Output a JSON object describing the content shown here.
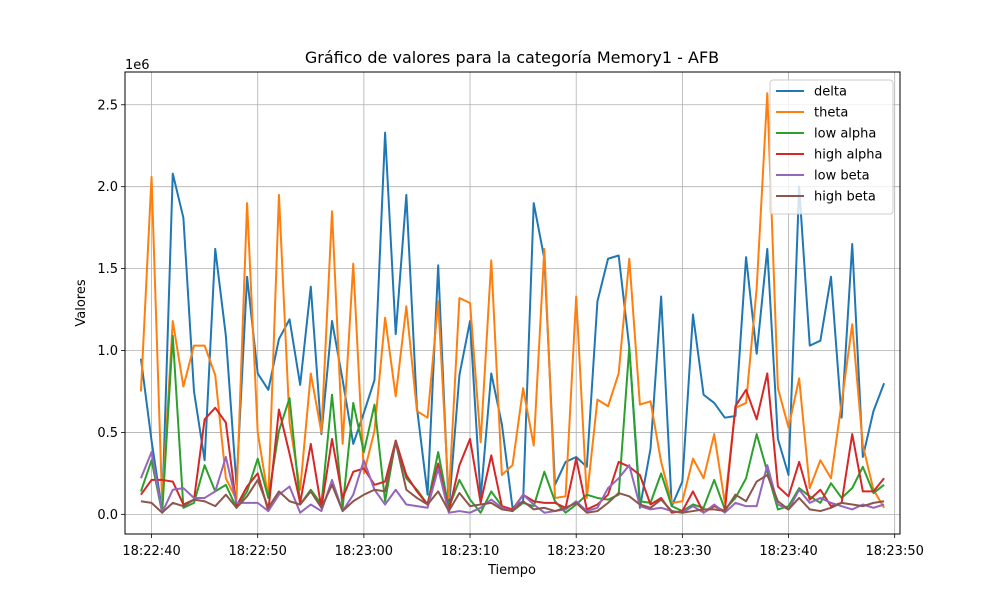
{
  "chart_data": {
    "type": "line",
    "title": "Gráfico de valores para la categoría Memory1 - AFB",
    "xlabel": "Tiempo",
    "ylabel": "Valores",
    "y_scale_label": "1e6",
    "grid": true,
    "legend_position": "top-right",
    "x_start_time": "18:22:39",
    "x_unit": "seconds",
    "xlim": [
      "18:22:37.5",
      "18:23:50.5"
    ],
    "ylim": [
      -0.12,
      2.7
    ],
    "x_ticks": [
      {
        "label": "18:22:40",
        "value": 1
      },
      {
        "label": "18:22:50",
        "value": 11
      },
      {
        "label": "18:23:00",
        "value": 21
      },
      {
        "label": "18:23:10",
        "value": 31
      },
      {
        "label": "18:23:20",
        "value": 41
      },
      {
        "label": "18:23:30",
        "value": 51
      },
      {
        "label": "18:23:40",
        "value": 61
      },
      {
        "label": "18:23:50",
        "value": 71
      }
    ],
    "y_ticks": [
      {
        "label": "0.0",
        "value": 0
      },
      {
        "label": "0.5",
        "value": 0.5
      },
      {
        "label": "1.0",
        "value": 1.0
      },
      {
        "label": "1.5",
        "value": 1.5
      },
      {
        "label": "2.0",
        "value": 2.0
      },
      {
        "label": "2.5",
        "value": 2.5
      }
    ],
    "series": [
      {
        "name": "delta",
        "color": "#1f77b4",
        "values": [
          0.95,
          0.45,
          0.02,
          2.08,
          1.81,
          0.75,
          0.33,
          1.62,
          1.09,
          0.18,
          1.45,
          0.86,
          0.76,
          1.07,
          1.19,
          0.79,
          1.39,
          0.49,
          1.18,
          0.82,
          0.43,
          0.62,
          0.82,
          2.33,
          1.1,
          1.95,
          0.65,
          0.12,
          1.52,
          0.03,
          0.85,
          1.18,
          0.1,
          0.86,
          0.55,
          0.04,
          0.08,
          1.9,
          1.56,
          0.18,
          0.32,
          0.35,
          0.29,
          1.3,
          1.56,
          1.58,
          1.02,
          0.04,
          0.4,
          1.33,
          0.05,
          0.2,
          1.22,
          0.73,
          0.68,
          0.59,
          0.6,
          1.57,
          0.98,
          1.62,
          0.46,
          0.24,
          2.0,
          1.03,
          1.06,
          1.45,
          0.59,
          1.65,
          0.35,
          0.63,
          0.8
        ]
      },
      {
        "name": "theta",
        "color": "#ff7f0e",
        "values": [
          0.75,
          2.06,
          0.07,
          1.18,
          0.78,
          1.03,
          1.03,
          0.85,
          0.22,
          0.09,
          1.9,
          0.5,
          0.1,
          1.95,
          0.56,
          0.15,
          0.86,
          0.5,
          1.85,
          0.43,
          1.53,
          0.25,
          0.51,
          1.2,
          0.72,
          1.27,
          0.63,
          0.59,
          1.3,
          0.1,
          1.32,
          1.29,
          0.44,
          1.55,
          0.24,
          0.3,
          0.77,
          0.42,
          1.62,
          0.1,
          0.11,
          1.33,
          0.1,
          0.7,
          0.66,
          0.86,
          1.56,
          0.67,
          0.69,
          0.32,
          0.07,
          0.08,
          0.34,
          0.22,
          0.49,
          0.07,
          0.65,
          0.68,
          1.38,
          2.57,
          0.77,
          0.53,
          0.83,
          0.16,
          0.33,
          0.22,
          0.68,
          1.16,
          0.42,
          0.15,
          0.04
        ]
      },
      {
        "name": "low alpha",
        "color": "#2ca02c",
        "values": [
          0.14,
          0.33,
          0.01,
          1.09,
          0.04,
          0.07,
          0.3,
          0.14,
          0.18,
          0.04,
          0.14,
          0.34,
          0.1,
          0.51,
          0.71,
          0.06,
          0.15,
          0.06,
          0.73,
          0.04,
          0.68,
          0.38,
          0.67,
          0.08,
          0.45,
          0.22,
          0.15,
          0.06,
          0.38,
          0.04,
          0.21,
          0.09,
          0.01,
          0.14,
          0.05,
          0.02,
          0.07,
          0.05,
          0.26,
          0.08,
          0.01,
          0.06,
          0.12,
          0.1,
          0.09,
          0.12,
          1.02,
          0.08,
          0.07,
          0.25,
          0.05,
          0.02,
          0.06,
          0.04,
          0.21,
          0.03,
          0.1,
          0.22,
          0.49,
          0.26,
          0.03,
          0.05,
          0.16,
          0.11,
          0.07,
          0.19,
          0.1,
          0.16,
          0.29,
          0.13,
          0.18
        ]
      },
      {
        "name": "high alpha",
        "color": "#d62728",
        "values": [
          0.12,
          0.21,
          0.21,
          0.2,
          0.06,
          0.09,
          0.58,
          0.65,
          0.56,
          0.05,
          0.17,
          0.25,
          0.02,
          0.64,
          0.37,
          0.07,
          0.43,
          0.04,
          0.46,
          0.1,
          0.26,
          0.28,
          0.18,
          0.2,
          0.45,
          0.24,
          0.14,
          0.06,
          0.31,
          0.02,
          0.3,
          0.46,
          0.07,
          0.36,
          0.05,
          0.03,
          0.12,
          0.08,
          0.07,
          0.07,
          0.04,
          0.34,
          0.03,
          0.06,
          0.12,
          0.32,
          0.29,
          0.24,
          0.06,
          0.1,
          0.01,
          0.02,
          0.14,
          0.01,
          0.05,
          0.02,
          0.66,
          0.76,
          0.58,
          0.86,
          0.17,
          0.11,
          0.32,
          0.09,
          0.15,
          0.05,
          0.07,
          0.49,
          0.14,
          0.14,
          0.22
        ]
      },
      {
        "name": "low beta",
        "color": "#9467bd",
        "values": [
          0.22,
          0.38,
          0.01,
          0.15,
          0.16,
          0.1,
          0.1,
          0.14,
          0.35,
          0.07,
          0.07,
          0.07,
          0.02,
          0.12,
          0.17,
          0.01,
          0.06,
          0.02,
          0.21,
          0.02,
          0.12,
          0.33,
          0.15,
          0.06,
          0.15,
          0.06,
          0.05,
          0.04,
          0.28,
          0.01,
          0.02,
          0.01,
          0.04,
          0.09,
          0.04,
          0.02,
          0.12,
          0.06,
          0.01,
          0.02,
          0.03,
          0.08,
          0.02,
          0.04,
          0.16,
          0.22,
          0.3,
          0.05,
          0.03,
          0.04,
          0.02,
          0.01,
          0.05,
          0.01,
          0.06,
          0.01,
          0.07,
          0.05,
          0.05,
          0.3,
          0.06,
          0.03,
          0.15,
          0.07,
          0.1,
          0.07,
          0.05,
          0.03,
          0.06,
          0.04,
          0.06
        ]
      },
      {
        "name": "high beta",
        "color": "#8c564b",
        "values": [
          0.08,
          0.07,
          0.01,
          0.07,
          0.05,
          0.09,
          0.08,
          0.05,
          0.12,
          0.04,
          0.11,
          0.21,
          0.04,
          0.14,
          0.08,
          0.06,
          0.14,
          0.04,
          0.18,
          0.02,
          0.08,
          0.12,
          0.15,
          0.14,
          0.44,
          0.15,
          0.1,
          0.06,
          0.14,
          0.02,
          0.13,
          0.05,
          0.06,
          0.07,
          0.03,
          0.02,
          0.08,
          0.03,
          0.04,
          0.02,
          0.04,
          0.07,
          0.01,
          0.02,
          0.07,
          0.13,
          0.11,
          0.06,
          0.04,
          0.09,
          0.02,
          0.01,
          0.02,
          0.03,
          0.03,
          0.02,
          0.12,
          0.08,
          0.2,
          0.24,
          0.08,
          0.03,
          0.1,
          0.03,
          0.02,
          0.04,
          0.07,
          0.06,
          0.05,
          0.07,
          0.08
        ]
      }
    ]
  }
}
